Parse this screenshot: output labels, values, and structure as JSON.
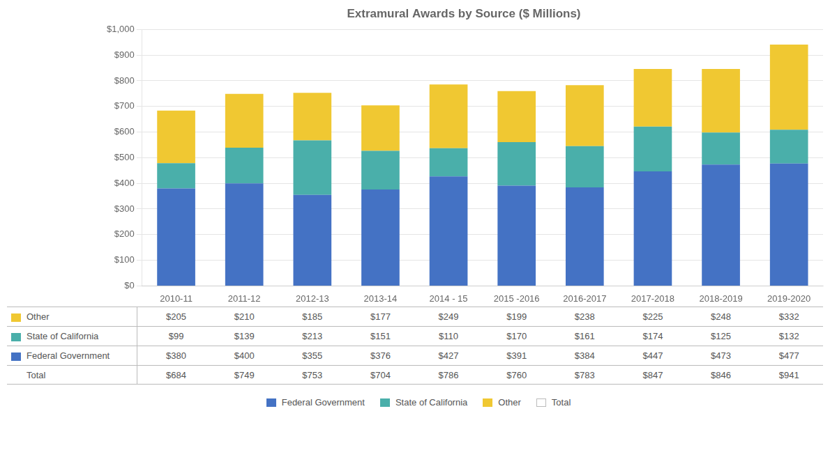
{
  "chart_data": {
    "type": "bar",
    "title": "Extramural Awards by Source ($ Millions)",
    "categories": [
      "2010-11",
      "2011-12",
      "2012-13",
      "2013-14",
      "2014 - 15",
      "2015 -2016",
      "2016-2017",
      "2017-2018",
      "2018-2019",
      "2019-2020"
    ],
    "stacked": true,
    "series": [
      {
        "name": "Federal Government",
        "color": "#4472c4",
        "values": [
          380,
          400,
          355,
          376,
          427,
          391,
          384,
          447,
          473,
          477
        ],
        "value_labels": [
          "$380",
          "$400",
          "$355",
          "$376",
          "$427",
          "$391",
          "$384",
          "$447",
          "$473",
          "$477"
        ]
      },
      {
        "name": "State of California",
        "color": "#4aafaa",
        "values": [
          99,
          139,
          213,
          151,
          110,
          170,
          161,
          174,
          125,
          132
        ],
        "value_labels": [
          "$99",
          "$139",
          "$213",
          "$151",
          "$110",
          "$170",
          "$161",
          "$174",
          "$125",
          "$132"
        ]
      },
      {
        "name": "Other",
        "color": "#f0c832",
        "values": [
          205,
          210,
          185,
          177,
          249,
          199,
          238,
          225,
          248,
          332
        ],
        "value_labels": [
          "$205",
          "$210",
          "$185",
          "$177",
          "$249",
          "$199",
          "$238",
          "$225",
          "$248",
          "$332"
        ]
      },
      {
        "name": "Total",
        "type": "table",
        "values": [
          684,
          749,
          753,
          704,
          786,
          760,
          783,
          847,
          846,
          941
        ],
        "value_labels": [
          "$684",
          "$749",
          "$753",
          "$704",
          "$786",
          "$760",
          "$783",
          "$847",
          "$846",
          "$941"
        ]
      }
    ],
    "ylim": [
      0,
      1000
    ],
    "yticks": [
      {
        "value": 0,
        "label": "$0"
      },
      {
        "value": 100,
        "label": "$100"
      },
      {
        "value": 200,
        "label": "$200"
      },
      {
        "value": 300,
        "label": "$300"
      },
      {
        "value": 400,
        "label": "$400"
      },
      {
        "value": 500,
        "label": "$500"
      },
      {
        "value": 600,
        "label": "$600"
      },
      {
        "value": 700,
        "label": "$700"
      },
      {
        "value": 800,
        "label": "$800"
      },
      {
        "value": 900,
        "label": "$900"
      },
      {
        "value": 1000,
        "label": "$1,000"
      }
    ],
    "grid": true,
    "legend": "bottom"
  }
}
